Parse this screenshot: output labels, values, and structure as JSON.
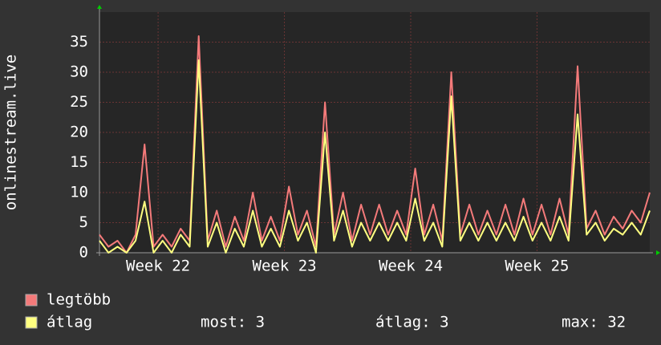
{
  "chart_data": {
    "type": "line",
    "y_label": "onlinestream.live",
    "x": [
      0,
      0.5,
      1,
      1.5,
      2,
      2.5,
      3,
      3.5,
      4,
      4.5,
      5,
      5.5,
      6,
      6.5,
      7,
      7.5,
      8,
      8.5,
      9,
      9.5,
      10,
      10.5,
      11,
      11.5,
      12,
      12.5,
      13,
      13.5,
      14,
      14.5,
      15,
      15.5,
      16,
      16.5,
      17,
      17.5,
      18,
      18.5,
      19,
      19.5,
      20,
      20.5,
      21,
      21.5,
      22,
      22.5,
      23,
      23.5,
      24,
      24.5,
      25,
      25.5,
      26,
      26.5,
      27,
      27.5,
      28,
      28.5,
      29,
      29.5,
      30,
      30.5
    ],
    "series": [
      {
        "name": "legtöbb",
        "color": "#f47a7a",
        "values": [
          3,
          1,
          2,
          0,
          3,
          18,
          1,
          3,
          1,
          4,
          2,
          36,
          2,
          7,
          1,
          6,
          2,
          10,
          2,
          6,
          2,
          11,
          3,
          7,
          1,
          25,
          3,
          10,
          2,
          8,
          3,
          8,
          3,
          7,
          3,
          14,
          3,
          8,
          2,
          30,
          3,
          8,
          3,
          7,
          3,
          8,
          3,
          9,
          3,
          8,
          3,
          9,
          3,
          31,
          4,
          7,
          3,
          6,
          4,
          7,
          5,
          10
        ]
      },
      {
        "name": "átlag",
        "color": "#ffff80",
        "values": [
          2,
          0,
          1,
          0,
          2,
          8.5,
          0,
          2,
          0,
          3,
          1,
          32,
          1,
          5,
          0,
          4,
          1,
          7,
          1,
          4,
          1,
          7,
          2,
          5,
          0,
          20,
          2,
          7,
          1,
          5,
          2,
          5,
          2,
          5,
          2,
          9,
          2,
          5,
          1,
          26,
          2,
          5,
          2,
          5,
          2,
          5,
          2,
          6,
          2,
          5,
          2,
          6,
          2,
          23,
          3,
          5,
          2,
          4,
          3,
          5,
          3,
          7
        ]
      }
    ],
    "xlim": [
      0,
      30.5
    ],
    "xticks": [
      {
        "value": 3.25,
        "label": "Week 22"
      },
      {
        "value": 10.25,
        "label": "Week 23"
      },
      {
        "value": 17.25,
        "label": "Week 24"
      },
      {
        "value": 24.25,
        "label": "Week 25"
      }
    ],
    "ylim": [
      0,
      40
    ],
    "yticks": [
      0,
      5,
      10,
      15,
      20,
      25,
      30,
      35
    ],
    "grid": true,
    "stats": [
      "most: 3",
      "átlag: 3",
      "max: 32"
    ]
  }
}
